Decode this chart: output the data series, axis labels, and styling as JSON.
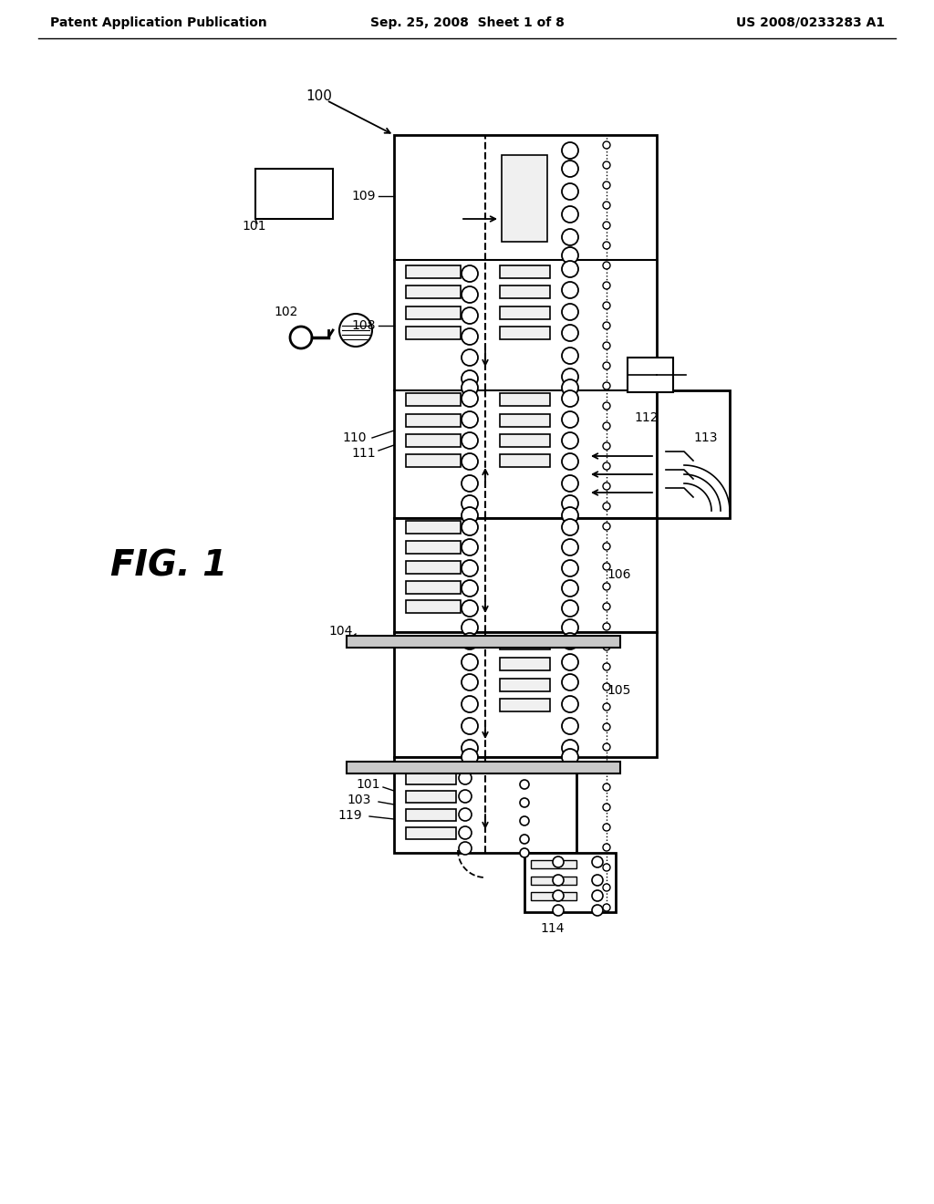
{
  "bg_color": "#ffffff",
  "header_left": "Patent Application Publication",
  "header_center": "Sep. 25, 2008  Sheet 1 of 8",
  "header_right": "US 2008/0233283 A1",
  "fig_label": "FIG. 1",
  "lc": "#000000"
}
